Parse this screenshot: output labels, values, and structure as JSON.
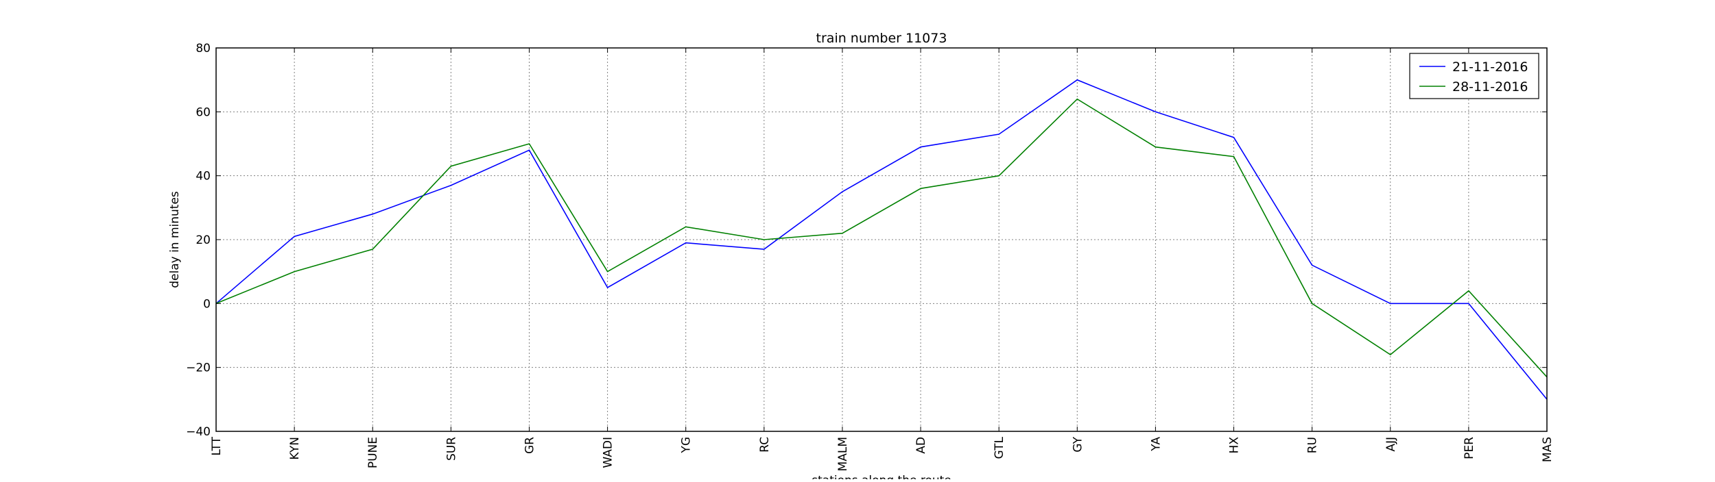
{
  "chart_data": {
    "type": "line",
    "title": "train number 11073",
    "xlabel": "stations along the route",
    "ylabel": "delay in minutes",
    "categories": [
      "LTT",
      "KYN",
      "PUNE",
      "SUR",
      "GR",
      "WADI",
      "YG",
      "RC",
      "MALM",
      "AD",
      "GTL",
      "GY",
      "YA",
      "HX",
      "RU",
      "AJJ",
      "PER",
      "MAS"
    ],
    "ylim": [
      -40,
      80
    ],
    "yticks": [
      -40,
      -20,
      0,
      20,
      40,
      60,
      80
    ],
    "grid": true,
    "legend_position": "top-right",
    "series": [
      {
        "name": "21-11-2016",
        "color": "#0000ff",
        "values": [
          0,
          21,
          28,
          37,
          48,
          5,
          19,
          17,
          35,
          49,
          53,
          70,
          60,
          52,
          12,
          0,
          0,
          -30
        ]
      },
      {
        "name": "28-11-2016",
        "color": "#008000",
        "values": [
          0,
          10,
          17,
          43,
          50,
          10,
          24,
          20,
          22,
          36,
          40,
          64,
          49,
          46,
          0,
          -16,
          4,
          -23
        ]
      }
    ]
  }
}
